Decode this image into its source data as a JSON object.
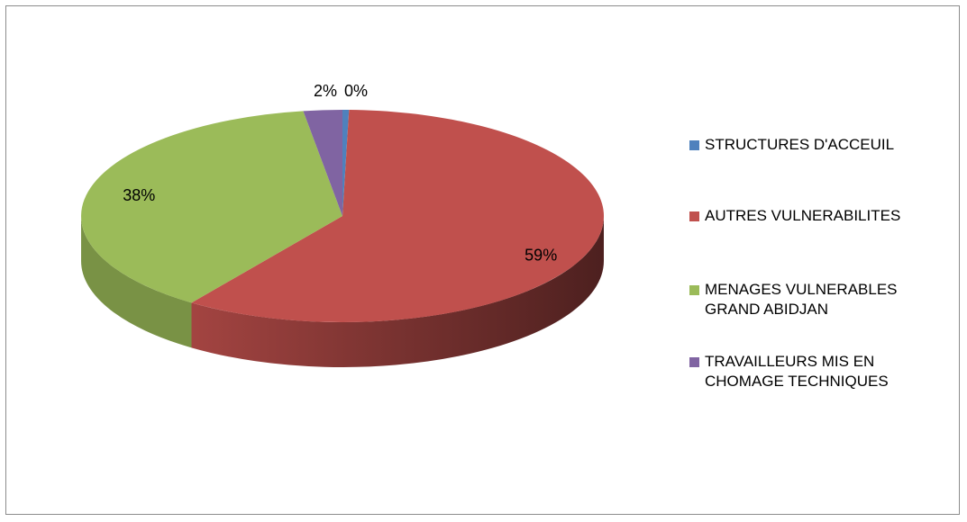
{
  "chart_data": {
    "type": "pie",
    "categories": [
      "STRUCTURES D'ACCEUIL",
      "AUTRES VULNERABILITES",
      "MENAGES VULNERABLES GRAND ABIDJAN",
      "TRAVAILLEURS MIS EN CHOMAGE TECHNIQUES"
    ],
    "values": [
      0.4,
      59.4,
      37.8,
      2.4
    ],
    "value_labels": [
      "0%",
      "59%",
      "38%",
      "2%"
    ],
    "colors": [
      "#4f81bd",
      "#c0504d",
      "#9bbb59",
      "#8064a2"
    ],
    "legend": "right"
  }
}
